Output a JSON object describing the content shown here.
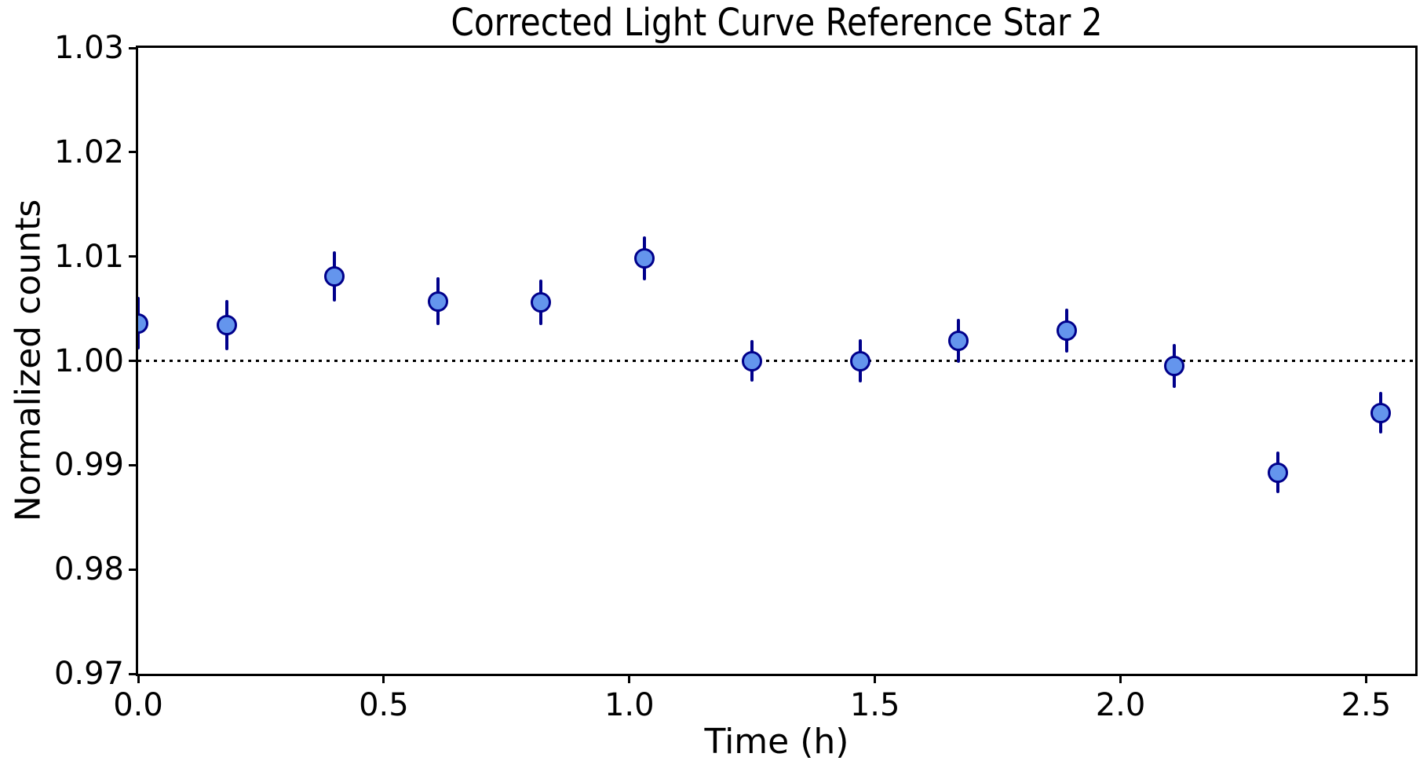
{
  "chart_data": {
    "type": "scatter",
    "title": "Corrected Light Curve Reference Star 2",
    "xlabel": "Time (h)",
    "ylabel": "Normalized counts",
    "xlim": [
      0.0,
      2.6
    ],
    "ylim": [
      0.97,
      1.03
    ],
    "grid": false,
    "legend_position": "none",
    "x_ticks": [
      {
        "value": 0.0,
        "label": "0.0"
      },
      {
        "value": 0.5,
        "label": "0.5"
      },
      {
        "value": 1.0,
        "label": "1.0"
      },
      {
        "value": 1.5,
        "label": "1.5"
      },
      {
        "value": 2.0,
        "label": "2.0"
      },
      {
        "value": 2.5,
        "label": "2.5"
      }
    ],
    "y_ticks": [
      {
        "value": 1.03,
        "label": "1.03"
      },
      {
        "value": 1.02,
        "label": "1.02"
      },
      {
        "value": 1.01,
        "label": "1.01"
      },
      {
        "value": 1.0,
        "label": "1.00"
      },
      {
        "value": 0.99,
        "label": "0.99"
      },
      {
        "value": 0.98,
        "label": "0.98"
      },
      {
        "value": 0.97,
        "label": "0.97"
      }
    ],
    "reference_line": {
      "y": 1.0,
      "style": "dotted",
      "color": "#000000"
    },
    "series": [
      {
        "name": "Reference Star 2",
        "marker": "circle",
        "marker_fill": "#6495ED",
        "marker_edge": "#00008B",
        "errorbar_color": "#00008B",
        "x": [
          0.0,
          0.18,
          0.4,
          0.61,
          0.82,
          1.03,
          1.25,
          1.47,
          1.67,
          1.89,
          2.11,
          2.32,
          2.53
        ],
        "y": [
          1.0036,
          1.0034,
          1.0081,
          1.0057,
          1.0056,
          1.0098,
          1.0,
          1.0,
          1.0019,
          1.0029,
          0.9995,
          0.9893,
          0.995
        ],
        "yerr": [
          0.0025,
          0.0024,
          0.0024,
          0.0023,
          0.0022,
          0.0021,
          0.002,
          0.0021,
          0.0021,
          0.0021,
          0.0021,
          0.002,
          0.002
        ]
      }
    ]
  }
}
